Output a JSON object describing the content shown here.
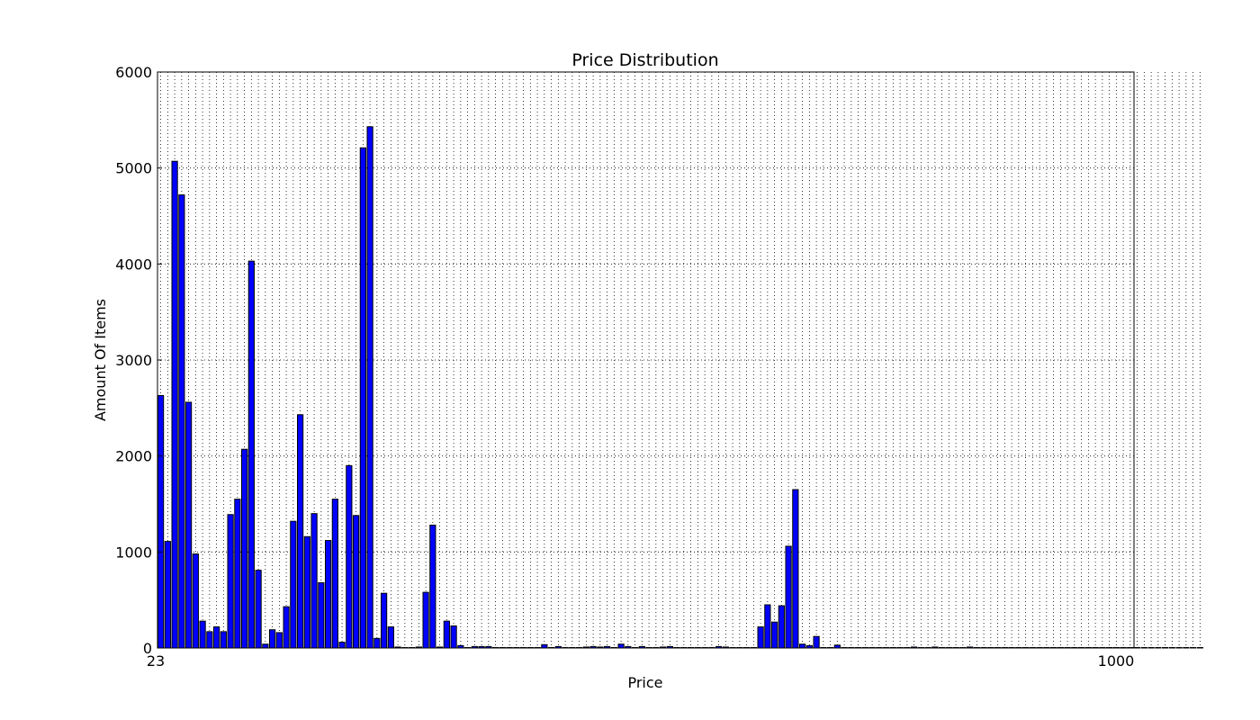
{
  "chart_data": {
    "type": "bar",
    "title": "Price Distribution",
    "xlabel": "Price",
    "ylabel": "Amount Of Items",
    "ylim": [
      0,
      6000
    ],
    "yticks": [
      "0",
      "1000",
      "2000",
      "3000",
      "4000",
      "5000",
      "6000"
    ],
    "xtick_labels_visible": [
      "23",
      "1000"
    ],
    "grid": true,
    "legend": "none",
    "bar_color": "#0000ff",
    "values": [
      2630,
      1110,
      5070,
      4720,
      2560,
      980,
      280,
      170,
      220,
      170,
      1390,
      1550,
      2070,
      4030,
      810,
      40,
      190,
      160,
      430,
      1320,
      2430,
      1160,
      1400,
      680,
      1120,
      1550,
      60,
      1900,
      1380,
      5210,
      5430,
      100,
      570,
      220,
      10,
      5,
      5,
      10,
      580,
      1280,
      10,
      280,
      230,
      25,
      5,
      15,
      15,
      15,
      5,
      5,
      5,
      5,
      5,
      5,
      5,
      35,
      5,
      15,
      5,
      5,
      5,
      10,
      15,
      10,
      15,
      5,
      40,
      15,
      5,
      15,
      5,
      5,
      10,
      15,
      5,
      5,
      5,
      5,
      5,
      5,
      15,
      10,
      5,
      5,
      5,
      5,
      220,
      450,
      270,
      440,
      1060,
      1650,
      40,
      25,
      120,
      5,
      5,
      30,
      5,
      5,
      5,
      5,
      5,
      5,
      5,
      5,
      5,
      5,
      10,
      5,
      5,
      10,
      5,
      5,
      5,
      5,
      10,
      5,
      5,
      5,
      5,
      5,
      5,
      5,
      5,
      5,
      5,
      5,
      5,
      5,
      5,
      5,
      5,
      5,
      5,
      5,
      5,
      5,
      5,
      5,
      5,
      5,
      5,
      5,
      5,
      5,
      5,
      5,
      5,
      5
    ]
  }
}
